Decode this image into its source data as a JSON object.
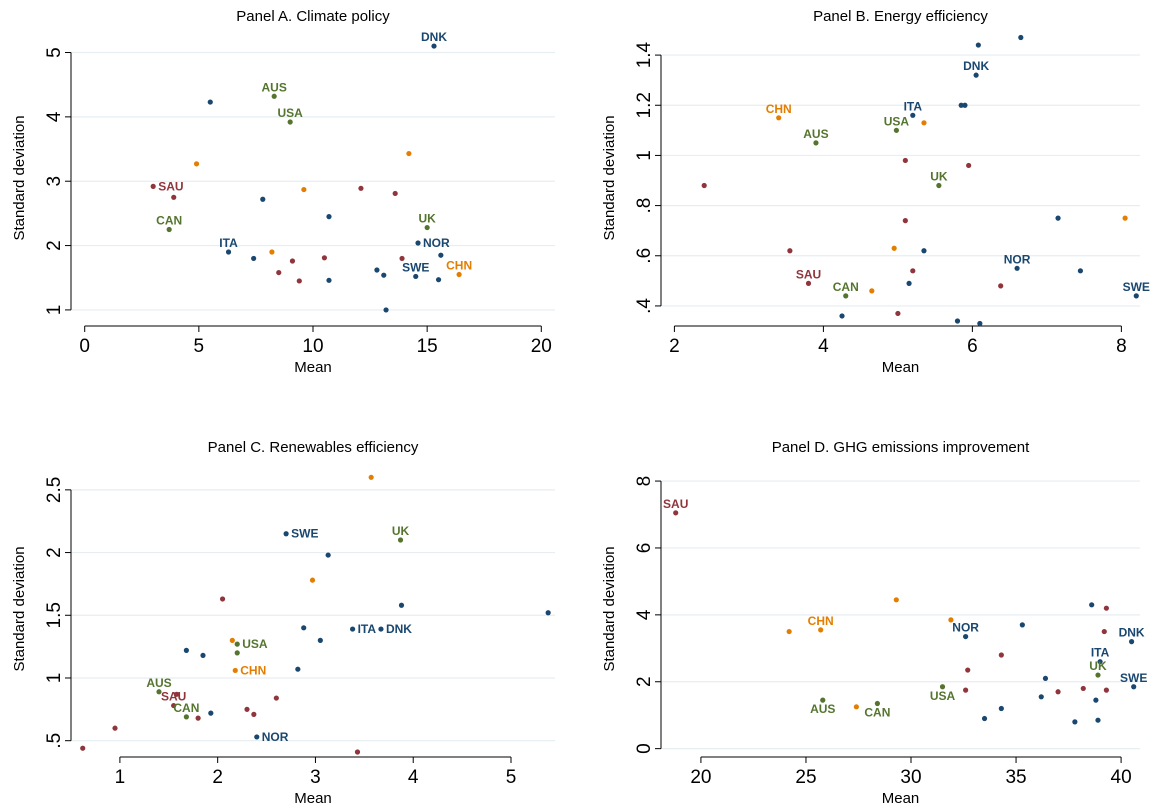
{
  "chart_data": [
    {
      "type": "scatter",
      "title": "Panel A. Climate policy",
      "xlabel": "Mean",
      "ylabel": "Standard deviation",
      "xlim": [
        -0.6,
        20.6
      ],
      "ylim": [
        0.75,
        5.35
      ],
      "xticks": [
        0,
        5,
        10,
        15,
        20
      ],
      "xtick_labels": [
        "0",
        "5",
        "10",
        "15",
        "20"
      ],
      "yticks": [
        1,
        2,
        3,
        4,
        5
      ],
      "ytick_labels": [
        "1",
        "2",
        "3",
        "4",
        "5"
      ],
      "grid": true,
      "points": [
        {
          "x": 15.3,
          "y": 5.1,
          "color": "#1a476f",
          "label": "DNK",
          "label_pos": "above"
        },
        {
          "x": 5.5,
          "y": 4.23,
          "color": "#1a476f"
        },
        {
          "x": 8.3,
          "y": 4.32,
          "color": "#55752f",
          "label": "AUS",
          "label_pos": "above"
        },
        {
          "x": 9.0,
          "y": 3.92,
          "color": "#55752f",
          "label": "USA",
          "label_pos": "above"
        },
        {
          "x": 4.9,
          "y": 3.27,
          "color": "#e37e00"
        },
        {
          "x": 14.2,
          "y": 3.43,
          "color": "#e37e00"
        },
        {
          "x": 3.0,
          "y": 2.92,
          "color": "#90353b",
          "label": "SAU",
          "label_pos": "right"
        },
        {
          "x": 3.9,
          "y": 2.75,
          "color": "#90353b"
        },
        {
          "x": 9.6,
          "y": 2.87,
          "color": "#e37e00"
        },
        {
          "x": 12.1,
          "y": 2.89,
          "color": "#90353b"
        },
        {
          "x": 13.6,
          "y": 2.81,
          "color": "#90353b"
        },
        {
          "x": 7.8,
          "y": 2.72,
          "color": "#1a476f"
        },
        {
          "x": 3.7,
          "y": 2.25,
          "color": "#55752f",
          "label": "CAN",
          "label_pos": "above"
        },
        {
          "x": 10.7,
          "y": 2.45,
          "color": "#1a476f"
        },
        {
          "x": 15.0,
          "y": 2.28,
          "color": "#55752f",
          "label": "UK",
          "label_pos": "above"
        },
        {
          "x": 6.3,
          "y": 1.9,
          "color": "#1a476f",
          "label": "ITA",
          "label_pos": "above"
        },
        {
          "x": 14.6,
          "y": 2.04,
          "color": "#1a476f",
          "label": "NOR",
          "label_pos": "right"
        },
        {
          "x": 8.2,
          "y": 1.9,
          "color": "#e37e00"
        },
        {
          "x": 15.6,
          "y": 1.85,
          "color": "#1a476f"
        },
        {
          "x": 7.4,
          "y": 1.8,
          "color": "#1a476f"
        },
        {
          "x": 9.1,
          "y": 1.76,
          "color": "#90353b"
        },
        {
          "x": 10.5,
          "y": 1.81,
          "color": "#90353b"
        },
        {
          "x": 13.9,
          "y": 1.8,
          "color": "#90353b"
        },
        {
          "x": 16.4,
          "y": 1.55,
          "color": "#e37e00",
          "label": "CHN",
          "label_pos": "above"
        },
        {
          "x": 8.5,
          "y": 1.58,
          "color": "#90353b"
        },
        {
          "x": 12.8,
          "y": 1.62,
          "color": "#1a476f"
        },
        {
          "x": 13.1,
          "y": 1.54,
          "color": "#1a476f"
        },
        {
          "x": 14.5,
          "y": 1.52,
          "color": "#1a476f",
          "label": "SWE",
          "label_pos": "above"
        },
        {
          "x": 15.5,
          "y": 1.47,
          "color": "#1a476f"
        },
        {
          "x": 9.4,
          "y": 1.45,
          "color": "#90353b"
        },
        {
          "x": 10.7,
          "y": 1.46,
          "color": "#1a476f"
        },
        {
          "x": 13.2,
          "y": 1.0,
          "color": "#1a476f"
        }
      ]
    },
    {
      "type": "scatter",
      "title": "Panel B. Energy efficiency",
      "xlabel": "Mean",
      "ylabel": "Standard deviation",
      "xlim": [
        1.82,
        8.25
      ],
      "ylim": [
        0.32,
        1.5
      ],
      "xticks": [
        2,
        4,
        6,
        8
      ],
      "xtick_labels": [
        "2",
        "4",
        "6",
        "8"
      ],
      "yticks": [
        0.4,
        0.6,
        0.8,
        1.0,
        1.2,
        1.4
      ],
      "ytick_labels": [
        ".4",
        ".6",
        ".8",
        "1",
        "1.2",
        "1.4"
      ],
      "grid": true,
      "points": [
        {
          "x": 6.65,
          "y": 1.47,
          "color": "#1a476f"
        },
        {
          "x": 6.08,
          "y": 1.44,
          "color": "#1a476f"
        },
        {
          "x": 6.05,
          "y": 1.32,
          "color": "#1a476f",
          "label": "DNK",
          "label_pos": "above"
        },
        {
          "x": 5.85,
          "y": 1.2,
          "color": "#1a476f"
        },
        {
          "x": 5.9,
          "y": 1.2,
          "color": "#1a476f"
        },
        {
          "x": 5.2,
          "y": 1.16,
          "color": "#1a476f",
          "label": "ITA",
          "label_pos": "above"
        },
        {
          "x": 3.4,
          "y": 1.15,
          "color": "#e37e00",
          "label": "CHN",
          "label_pos": "above"
        },
        {
          "x": 5.35,
          "y": 1.13,
          "color": "#e37e00"
        },
        {
          "x": 4.98,
          "y": 1.1,
          "color": "#55752f",
          "label": "USA",
          "label_pos": "above"
        },
        {
          "x": 3.9,
          "y": 1.05,
          "color": "#55752f",
          "label": "AUS",
          "label_pos": "above"
        },
        {
          "x": 5.1,
          "y": 0.98,
          "color": "#90353b"
        },
        {
          "x": 5.95,
          "y": 0.96,
          "color": "#90353b"
        },
        {
          "x": 5.55,
          "y": 0.88,
          "color": "#55752f",
          "label": "UK",
          "label_pos": "above"
        },
        {
          "x": 2.4,
          "y": 0.88,
          "color": "#90353b"
        },
        {
          "x": 8.05,
          "y": 0.75,
          "color": "#e37e00"
        },
        {
          "x": 7.15,
          "y": 0.75,
          "color": "#1a476f"
        },
        {
          "x": 5.1,
          "y": 0.74,
          "color": "#90353b"
        },
        {
          "x": 4.95,
          "y": 0.63,
          "color": "#e37e00"
        },
        {
          "x": 3.55,
          "y": 0.62,
          "color": "#90353b"
        },
        {
          "x": 5.35,
          "y": 0.62,
          "color": "#1a476f"
        },
        {
          "x": 6.6,
          "y": 0.55,
          "color": "#1a476f",
          "label": "NOR",
          "label_pos": "above"
        },
        {
          "x": 5.2,
          "y": 0.54,
          "color": "#90353b"
        },
        {
          "x": 7.45,
          "y": 0.54,
          "color": "#1a476f"
        },
        {
          "x": 3.8,
          "y": 0.49,
          "color": "#90353b",
          "label": "SAU",
          "label_pos": "above"
        },
        {
          "x": 5.15,
          "y": 0.49,
          "color": "#1a476f"
        },
        {
          "x": 6.38,
          "y": 0.48,
          "color": "#90353b"
        },
        {
          "x": 4.65,
          "y": 0.46,
          "color": "#e37e00"
        },
        {
          "x": 4.3,
          "y": 0.44,
          "color": "#55752f",
          "label": "CAN",
          "label_pos": "above"
        },
        {
          "x": 8.2,
          "y": 0.44,
          "color": "#1a476f",
          "label": "SWE",
          "label_pos": "above"
        },
        {
          "x": 5.0,
          "y": 0.37,
          "color": "#90353b"
        },
        {
          "x": 4.25,
          "y": 0.36,
          "color": "#1a476f"
        },
        {
          "x": 5.8,
          "y": 0.34,
          "color": "#1a476f"
        },
        {
          "x": 6.1,
          "y": 0.33,
          "color": "#1a476f"
        }
      ]
    },
    {
      "type": "scatter",
      "title": "Panel C. Renewables efficiency",
      "xlabel": "Mean",
      "ylabel": "Standard deviation",
      "xlim": [
        0.5,
        5.45
      ],
      "ylim": [
        0.37,
        2.73
      ],
      "xticks": [
        1,
        2,
        3,
        4,
        5
      ],
      "xtick_labels": [
        "1",
        "2",
        "3",
        "4",
        "5"
      ],
      "yticks": [
        0.5,
        1.0,
        1.5,
        2.0,
        2.5
      ],
      "ytick_labels": [
        ".5",
        "1",
        "1.5",
        "2",
        "2.5"
      ],
      "grid": true,
      "points": [
        {
          "x": 3.57,
          "y": 2.6,
          "color": "#e37e00"
        },
        {
          "x": 2.7,
          "y": 2.15,
          "color": "#1a476f",
          "label": "SWE",
          "label_pos": "right"
        },
        {
          "x": 3.87,
          "y": 2.1,
          "color": "#55752f",
          "label": "UK",
          "label_pos": "above"
        },
        {
          "x": 3.13,
          "y": 1.98,
          "color": "#1a476f"
        },
        {
          "x": 2.97,
          "y": 1.78,
          "color": "#e37e00"
        },
        {
          "x": 2.05,
          "y": 1.63,
          "color": "#90353b"
        },
        {
          "x": 3.88,
          "y": 1.58,
          "color": "#1a476f"
        },
        {
          "x": 5.38,
          "y": 1.52,
          "color": "#1a476f"
        },
        {
          "x": 2.88,
          "y": 1.4,
          "color": "#1a476f"
        },
        {
          "x": 3.38,
          "y": 1.39,
          "color": "#1a476f",
          "label": "ITA",
          "label_pos": "right"
        },
        {
          "x": 3.67,
          "y": 1.39,
          "color": "#1a476f",
          "label": "DNK",
          "label_pos": "right"
        },
        {
          "x": 3.05,
          "y": 1.3,
          "color": "#1a476f"
        },
        {
          "x": 2.15,
          "y": 1.3,
          "color": "#e37e00"
        },
        {
          "x": 2.2,
          "y": 1.27,
          "color": "#55752f",
          "label": "USA",
          "label_pos": "right"
        },
        {
          "x": 1.68,
          "y": 1.22,
          "color": "#1a476f"
        },
        {
          "x": 2.2,
          "y": 1.2,
          "color": "#55752f"
        },
        {
          "x": 1.85,
          "y": 1.18,
          "color": "#1a476f"
        },
        {
          "x": 2.82,
          "y": 1.07,
          "color": "#1a476f"
        },
        {
          "x": 2.18,
          "y": 1.06,
          "color": "#e37e00",
          "label": "CHN",
          "label_pos": "right"
        },
        {
          "x": 1.4,
          "y": 0.89,
          "color": "#55752f",
          "label": "AUS",
          "label_pos": "above"
        },
        {
          "x": 1.58,
          "y": 0.87,
          "color": "#90353b"
        },
        {
          "x": 2.6,
          "y": 0.84,
          "color": "#90353b"
        },
        {
          "x": 1.55,
          "y": 0.78,
          "color": "#90353b",
          "label": "SAU",
          "label_pos": "above"
        },
        {
          "x": 2.3,
          "y": 0.75,
          "color": "#90353b"
        },
        {
          "x": 1.93,
          "y": 0.72,
          "color": "#1a476f"
        },
        {
          "x": 2.37,
          "y": 0.71,
          "color": "#90353b"
        },
        {
          "x": 1.68,
          "y": 0.69,
          "color": "#55752f",
          "label": "CAN",
          "label_pos": "above"
        },
        {
          "x": 1.8,
          "y": 0.68,
          "color": "#90353b"
        },
        {
          "x": 0.95,
          "y": 0.6,
          "color": "#90353b"
        },
        {
          "x": 2.4,
          "y": 0.53,
          "color": "#1a476f",
          "label": "NOR",
          "label_pos": "right"
        },
        {
          "x": 0.62,
          "y": 0.44,
          "color": "#90353b"
        },
        {
          "x": 3.43,
          "y": 0.41,
          "color": "#90353b"
        }
      ]
    },
    {
      "type": "scatter",
      "title": "Panel D. GHG emissions improvement",
      "xlabel": "Mean",
      "ylabel": "Standard deviation",
      "xlim": [
        18.1,
        40.9
      ],
      "ylim": [
        -0.25,
        8.6
      ],
      "xticks": [
        20,
        25,
        30,
        35,
        40
      ],
      "xtick_labels": [
        "20",
        "25",
        "30",
        "35",
        "40"
      ],
      "yticks": [
        0,
        2,
        4,
        6,
        8
      ],
      "ytick_labels": [
        "0",
        "2",
        "4",
        "6",
        "8"
      ],
      "grid": true,
      "points": [
        {
          "x": 18.8,
          "y": 7.05,
          "color": "#90353b",
          "label": "SAU",
          "label_pos": "above"
        },
        {
          "x": 29.3,
          "y": 4.45,
          "color": "#e37e00"
        },
        {
          "x": 38.6,
          "y": 4.3,
          "color": "#1a476f"
        },
        {
          "x": 39.3,
          "y": 4.2,
          "color": "#90353b"
        },
        {
          "x": 31.9,
          "y": 3.85,
          "color": "#e37e00"
        },
        {
          "x": 35.3,
          "y": 3.7,
          "color": "#1a476f"
        },
        {
          "x": 25.7,
          "y": 3.55,
          "color": "#e37e00",
          "label": "CHN",
          "label_pos": "above"
        },
        {
          "x": 24.2,
          "y": 3.5,
          "color": "#e37e00"
        },
        {
          "x": 39.2,
          "y": 3.5,
          "color": "#90353b"
        },
        {
          "x": 32.6,
          "y": 3.35,
          "color": "#1a476f",
          "label": "NOR",
          "label_pos": "above"
        },
        {
          "x": 40.5,
          "y": 3.2,
          "color": "#1a476f",
          "label": "DNK",
          "label_pos": "above"
        },
        {
          "x": 34.3,
          "y": 2.8,
          "color": "#90353b"
        },
        {
          "x": 39.0,
          "y": 2.6,
          "color": "#1a476f",
          "label": "ITA",
          "label_pos": "above"
        },
        {
          "x": 32.7,
          "y": 2.35,
          "color": "#90353b"
        },
        {
          "x": 38.9,
          "y": 2.2,
          "color": "#55752f",
          "label": "UK",
          "label_pos": "above"
        },
        {
          "x": 36.4,
          "y": 2.1,
          "color": "#1a476f"
        },
        {
          "x": 40.6,
          "y": 1.85,
          "color": "#1a476f",
          "label": "SWE",
          "label_pos": "above"
        },
        {
          "x": 31.5,
          "y": 1.85,
          "color": "#55752f",
          "label": "USA",
          "label_pos": "below"
        },
        {
          "x": 38.2,
          "y": 1.8,
          "color": "#90353b"
        },
        {
          "x": 32.6,
          "y": 1.75,
          "color": "#90353b"
        },
        {
          "x": 37.0,
          "y": 1.7,
          "color": "#90353b"
        },
        {
          "x": 39.3,
          "y": 1.75,
          "color": "#90353b"
        },
        {
          "x": 36.2,
          "y": 1.55,
          "color": "#1a476f"
        },
        {
          "x": 38.8,
          "y": 1.45,
          "color": "#1a476f"
        },
        {
          "x": 25.8,
          "y": 1.45,
          "color": "#55752f",
          "label": "AUS",
          "label_pos": "below"
        },
        {
          "x": 28.4,
          "y": 1.35,
          "color": "#55752f",
          "label": "CAN",
          "label_pos": "below"
        },
        {
          "x": 27.4,
          "y": 1.25,
          "color": "#e37e00"
        },
        {
          "x": 34.3,
          "y": 1.2,
          "color": "#1a476f"
        },
        {
          "x": 33.5,
          "y": 0.9,
          "color": "#1a476f"
        },
        {
          "x": 37.8,
          "y": 0.8,
          "color": "#1a476f"
        },
        {
          "x": 38.9,
          "y": 0.85,
          "color": "#1a476f"
        }
      ]
    }
  ]
}
